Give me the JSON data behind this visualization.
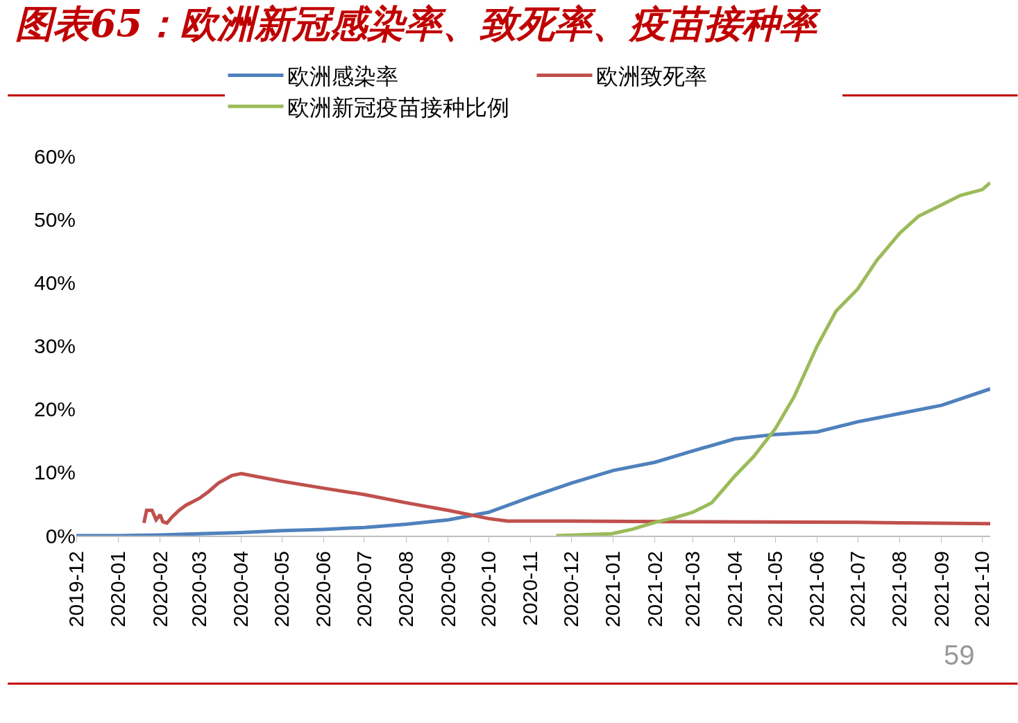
{
  "chart_data": {
    "type": "line",
    "title": "图表65：欧洲新冠感染率、致死率、疫苗接种率",
    "xlim": [
      "2019-12-01",
      "2021-10-07"
    ],
    "xticks": [
      "2019-12",
      "2020-01",
      "2020-02",
      "2020-03",
      "2020-04",
      "2020-05",
      "2020-06",
      "2020-07",
      "2020-08",
      "2020-09",
      "2020-10",
      "2020-11",
      "2020-12",
      "2021-01",
      "2021-02",
      "2021-03",
      "2021-04",
      "2021-05",
      "2021-06",
      "2021-07",
      "2021-08",
      "2021-09",
      "2021-10"
    ],
    "ylim": [
      0,
      60
    ],
    "yticks": [
      {
        "value": 0,
        "label": "0%"
      },
      {
        "value": 10,
        "label": "10%"
      },
      {
        "value": 20,
        "label": "20%"
      },
      {
        "value": 30,
        "label": "30%"
      },
      {
        "value": 40,
        "label": "40%"
      },
      {
        "value": 50,
        "label": "50%"
      },
      {
        "value": 60,
        "label": "60%"
      }
    ],
    "grid": false,
    "legend": "top",
    "marker": "none",
    "line_style": "solid",
    "annotations": [
      "59"
    ],
    "series": [
      {
        "name": "欧洲感染率",
        "color": "#4f81bd",
        "x": [
          "2019-12-01",
          "2020-01-01",
          "2020-02-01",
          "2020-03-01",
          "2020-04-01",
          "2020-05-01",
          "2020-06-01",
          "2020-07-01",
          "2020-08-01",
          "2020-09-01",
          "2020-10-01",
          "2020-11-01",
          "2020-12-01",
          "2021-01-01",
          "2021-02-01",
          "2021-03-01",
          "2021-04-01",
          "2021-05-01",
          "2021-06-01",
          "2021-07-01",
          "2021-08-01",
          "2021-09-01",
          "2021-10-07"
        ],
        "values": [
          0,
          0,
          0.1,
          0.3,
          0.5,
          0.8,
          1.0,
          1.3,
          1.8,
          2.5,
          3.7,
          6.1,
          8.3,
          10.3,
          11.6,
          13.4,
          15.3,
          16.0,
          16.4,
          18.0,
          19.3,
          20.6,
          23.2
        ]
      },
      {
        "name": "欧洲致死率",
        "color": "#c0504d",
        "x": [
          "2020-01-20",
          "2020-01-22",
          "2020-01-26",
          "2020-01-29",
          "2020-02-01",
          "2020-02-03",
          "2020-02-06",
          "2020-02-10",
          "2020-02-15",
          "2020-02-20",
          "2020-03-01",
          "2020-03-08",
          "2020-03-15",
          "2020-03-25",
          "2020-04-01",
          "2020-05-01",
          "2020-06-01",
          "2020-07-01",
          "2020-08-01",
          "2020-09-01",
          "2020-10-01",
          "2020-10-15",
          "2020-12-01",
          "2021-03-01",
          "2021-07-01",
          "2021-10-07"
        ],
        "values": [
          2.0,
          4.0,
          4.0,
          2.5,
          3.3,
          2.2,
          2.0,
          3.0,
          4.0,
          4.8,
          5.9,
          7.0,
          8.3,
          9.5,
          9.8,
          8.6,
          7.5,
          6.5,
          5.2,
          4.0,
          2.7,
          2.3,
          2.3,
          2.2,
          2.1,
          1.9
        ]
      },
      {
        "name": "欧洲新冠疫苗接种比例",
        "color": "#9bbb59",
        "x": [
          "2020-11-20",
          "2020-12-31",
          "2021-01-15",
          "2021-02-01",
          "2021-02-15",
          "2021-03-01",
          "2021-03-15",
          "2021-04-01",
          "2021-04-15",
          "2021-05-01",
          "2021-05-15",
          "2021-06-01",
          "2021-06-15",
          "2021-07-01",
          "2021-07-15",
          "2021-08-01",
          "2021-08-15",
          "2021-09-01",
          "2021-09-15",
          "2021-10-01",
          "2021-10-07"
        ],
        "values": [
          0,
          0.3,
          1.0,
          2.1,
          2.8,
          3.7,
          5.2,
          9.4,
          12.5,
          16.9,
          22.0,
          30.0,
          35.5,
          39.0,
          43.5,
          47.8,
          50.5,
          52.3,
          53.8,
          54.7,
          55.8
        ]
      }
    ]
  }
}
